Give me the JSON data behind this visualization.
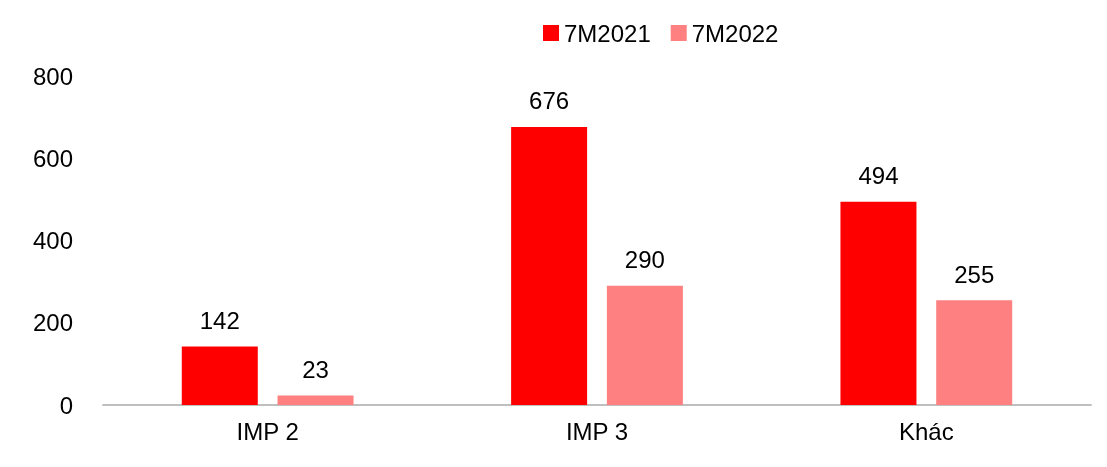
{
  "chart_data": {
    "type": "bar",
    "categories": [
      "IMP 2",
      "IMP 3",
      "Khác"
    ],
    "series": [
      {
        "name": "7M2021",
        "color": "#ff0000",
        "values": [
          142,
          676,
          494
        ]
      },
      {
        "name": "7M2022",
        "color": "#ff8080",
        "values": [
          23,
          290,
          255
        ]
      }
    ],
    "ylim": [
      0,
      800
    ],
    "yticks": [
      0,
      200,
      400,
      600,
      800
    ],
    "grid": false,
    "legend": "top right",
    "data_labels": true
  }
}
